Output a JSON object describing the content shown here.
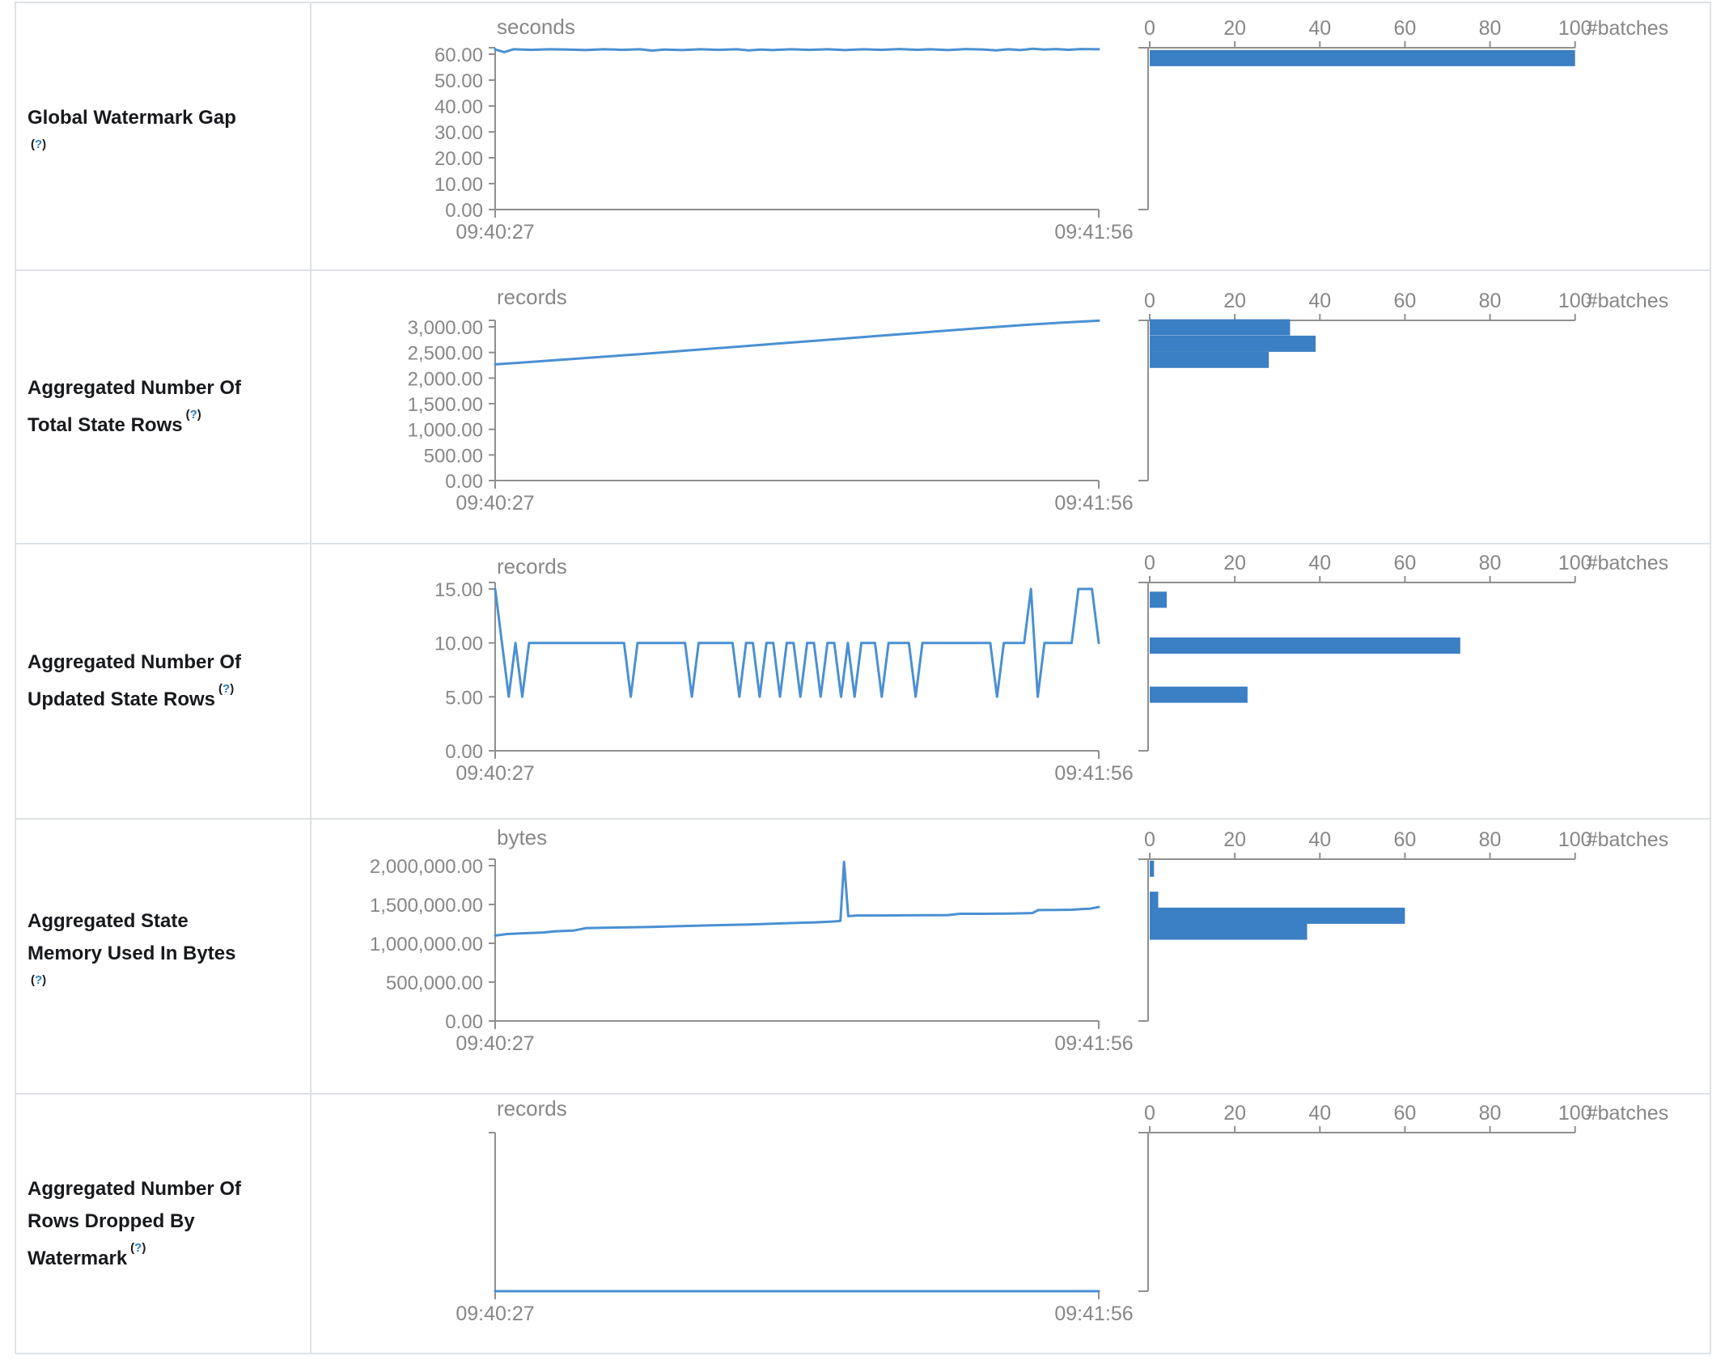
{
  "page": {
    "background": "#ffffff",
    "border_color": "#dee2e6"
  },
  "colors": {
    "line": "#4a90d2",
    "bar": "#3b7fc4",
    "axis": "#8f8f8f",
    "axis_text": "#878787",
    "label_text": "#17191c",
    "help_link": "#2b7cba"
  },
  "time_axis": {
    "start": "09:40:27",
    "end": "09:41:56"
  },
  "batches_axis": {
    "ticks": [
      "0",
      "20",
      "40",
      "60",
      "80",
      "100"
    ],
    "values": [
      0,
      20,
      40,
      60,
      80,
      100
    ],
    "label": "#batches",
    "xlim": [
      0,
      100
    ]
  },
  "chart_data": [
    {
      "metric": "Global Watermark Gap",
      "label_lines": [
        "Global Watermark Gap"
      ],
      "help": "(?)",
      "help_own_line": true,
      "line": {
        "type": "line",
        "ylabel": "seconds",
        "ylim": [
          0,
          60
        ],
        "x_range": [
          "09:40:27",
          "09:41:56"
        ],
        "yticks": [
          {
            "label": "60.00",
            "value": 60
          },
          {
            "label": "50.00",
            "value": 50
          },
          {
            "label": "40.00",
            "value": 40
          },
          {
            "label": "30.00",
            "value": 30
          },
          {
            "label": "20.00",
            "value": 20
          },
          {
            "label": "10.00",
            "value": 10
          },
          {
            "label": "0.00",
            "value": 0
          }
        ],
        "points": [
          [
            0,
            61.8
          ],
          [
            0.015,
            60.8
          ],
          [
            0.03,
            61.9
          ],
          [
            0.06,
            61.7
          ],
          [
            0.09,
            61.9
          ],
          [
            0.12,
            61.8
          ],
          [
            0.15,
            61.6
          ],
          [
            0.18,
            61.9
          ],
          [
            0.21,
            61.7
          ],
          [
            0.24,
            61.9
          ],
          [
            0.26,
            61.4
          ],
          [
            0.28,
            61.8
          ],
          [
            0.31,
            61.6
          ],
          [
            0.34,
            61.9
          ],
          [
            0.37,
            61.7
          ],
          [
            0.4,
            61.9
          ],
          [
            0.42,
            61.5
          ],
          [
            0.44,
            61.8
          ],
          [
            0.46,
            61.6
          ],
          [
            0.49,
            61.9
          ],
          [
            0.52,
            61.7
          ],
          [
            0.55,
            61.9
          ],
          [
            0.58,
            61.6
          ],
          [
            0.61,
            61.9
          ],
          [
            0.64,
            61.7
          ],
          [
            0.67,
            62.0
          ],
          [
            0.7,
            61.7
          ],
          [
            0.72,
            61.9
          ],
          [
            0.75,
            61.6
          ],
          [
            0.78,
            62.0
          ],
          [
            0.81,
            61.8
          ],
          [
            0.83,
            61.5
          ],
          [
            0.85,
            61.9
          ],
          [
            0.87,
            61.6
          ],
          [
            0.89,
            62.1
          ],
          [
            0.91,
            61.8
          ],
          [
            0.93,
            62.0
          ],
          [
            0.95,
            61.7
          ],
          [
            0.97,
            62.0
          ],
          [
            1,
            61.9
          ]
        ]
      },
      "histogram": {
        "type": "bar",
        "xlabel": "#batches",
        "xlim": [
          0,
          100
        ],
        "bins": [
          {
            "value": 58.5,
            "count": 100
          }
        ]
      }
    },
    {
      "metric": "Aggregated Number Of Total State Rows",
      "label_lines": [
        "Aggregated Number Of",
        "Total State Rows"
      ],
      "help": "(?)",
      "help_own_line": false,
      "line": {
        "type": "line",
        "ylabel": "records",
        "ylim": [
          0,
          3000
        ],
        "x_range": [
          "09:40:27",
          "09:41:56"
        ],
        "yticks": [
          {
            "label": "3,000.00",
            "value": 3000
          },
          {
            "label": "2,500.00",
            "value": 2500
          },
          {
            "label": "2,000.00",
            "value": 2000
          },
          {
            "label": "1,500.00",
            "value": 1500
          },
          {
            "label": "1,000.00",
            "value": 1000
          },
          {
            "label": "500.00",
            "value": 500
          },
          {
            "label": "0.00",
            "value": 0
          }
        ],
        "points": [
          [
            0,
            2268
          ],
          [
            0.08,
            2332
          ],
          [
            0.16,
            2400
          ],
          [
            0.24,
            2468
          ],
          [
            0.32,
            2540
          ],
          [
            0.4,
            2612
          ],
          [
            0.48,
            2684
          ],
          [
            0.56,
            2756
          ],
          [
            0.64,
            2828
          ],
          [
            0.72,
            2900
          ],
          [
            0.8,
            2972
          ],
          [
            0.88,
            3040
          ],
          [
            0.94,
            3084
          ],
          [
            1,
            3120
          ]
        ]
      },
      "histogram": {
        "type": "bar",
        "xlabel": "#batches",
        "xlim": [
          0,
          100
        ],
        "bins": [
          {
            "value": 2990,
            "count": 33
          },
          {
            "value": 2670,
            "count": 39
          },
          {
            "value": 2355,
            "count": 28
          }
        ]
      }
    },
    {
      "metric": "Aggregated Number Of Updated State Rows",
      "label_lines": [
        "Aggregated Number Of",
        "Updated State Rows"
      ],
      "help": "(?)",
      "help_own_line": false,
      "line": {
        "type": "line",
        "ylabel": "records",
        "ylim": [
          0,
          15
        ],
        "x_range": [
          "09:40:27",
          "09:41:56"
        ],
        "yticks": [
          {
            "label": "15.00",
            "value": 15
          },
          {
            "label": "10.00",
            "value": 10
          },
          {
            "label": "5.00",
            "value": 5
          },
          {
            "label": "0.00",
            "value": 0
          }
        ],
        "values": [
          15,
          10,
          5,
          10,
          5,
          10,
          10,
          10,
          10,
          10,
          10,
          10,
          10,
          10,
          10,
          10,
          10,
          10,
          10,
          10,
          5,
          10,
          10,
          10,
          10,
          10,
          10,
          10,
          10,
          5,
          10,
          10,
          10,
          10,
          10,
          10,
          5,
          10,
          10,
          5,
          10,
          10,
          5,
          10,
          10,
          5,
          10,
          10,
          5,
          10,
          10,
          5,
          10,
          5,
          10,
          10,
          10,
          5,
          10,
          10,
          10,
          10,
          5,
          10,
          10,
          10,
          10,
          10,
          10,
          10,
          10,
          10,
          10,
          10,
          5,
          10,
          10,
          10,
          10,
          15,
          5,
          10,
          10,
          10,
          10,
          10,
          15,
          15,
          15,
          10
        ]
      },
      "histogram": {
        "type": "bar",
        "xlabel": "#batches",
        "xlim": [
          0,
          100
        ],
        "bins": [
          {
            "value": 14.0,
            "count": 4
          },
          {
            "value": 9.75,
            "count": 73
          },
          {
            "value": 5.2,
            "count": 23
          }
        ]
      }
    },
    {
      "metric": "Aggregated State Memory Used In Bytes",
      "label_lines": [
        "Aggregated State",
        "Memory Used In Bytes"
      ],
      "help": "(?)",
      "help_own_line": true,
      "line": {
        "type": "line",
        "ylabel": "bytes",
        "ylim": [
          0,
          2000000
        ],
        "x_range": [
          "09:40:27",
          "09:41:56"
        ],
        "yticks": [
          {
            "label": "2,000,000.00",
            "value": 2000000
          },
          {
            "label": "1,500,000.00",
            "value": 1500000
          },
          {
            "label": "1,000,000.00",
            "value": 1000000
          },
          {
            "label": "500,000.00",
            "value": 500000
          },
          {
            "label": "0.00",
            "value": 0
          }
        ],
        "points": [
          [
            0,
            1100000
          ],
          [
            0.02,
            1120000
          ],
          [
            0.05,
            1130000
          ],
          [
            0.08,
            1140000
          ],
          [
            0.1,
            1155000
          ],
          [
            0.13,
            1165000
          ],
          [
            0.15,
            1195000
          ],
          [
            0.18,
            1200000
          ],
          [
            0.22,
            1205000
          ],
          [
            0.26,
            1210000
          ],
          [
            0.3,
            1220000
          ],
          [
            0.34,
            1228000
          ],
          [
            0.38,
            1235000
          ],
          [
            0.42,
            1243000
          ],
          [
            0.46,
            1252000
          ],
          [
            0.5,
            1262000
          ],
          [
            0.53,
            1270000
          ],
          [
            0.555,
            1278000
          ],
          [
            0.565,
            1283000
          ],
          [
            0.572,
            1290000
          ],
          [
            0.578,
            2050000
          ],
          [
            0.585,
            1350000
          ],
          [
            0.6,
            1358000
          ],
          [
            0.64,
            1358000
          ],
          [
            0.68,
            1360000
          ],
          [
            0.72,
            1362000
          ],
          [
            0.75,
            1364000
          ],
          [
            0.77,
            1380000
          ],
          [
            0.81,
            1380000
          ],
          [
            0.85,
            1383000
          ],
          [
            0.875,
            1386000
          ],
          [
            0.89,
            1390000
          ],
          [
            0.9,
            1428000
          ],
          [
            0.93,
            1430000
          ],
          [
            0.955,
            1432000
          ],
          [
            0.97,
            1440000
          ],
          [
            0.985,
            1445000
          ],
          [
            1,
            1468000
          ]
        ]
      },
      "histogram": {
        "type": "bar",
        "xlabel": "#batches",
        "xlim": [
          0,
          100
        ],
        "bins": [
          {
            "value": 1960000,
            "count": 1
          },
          {
            "value": 1560000,
            "count": 2
          },
          {
            "value": 1355000,
            "count": 60
          },
          {
            "value": 1150000,
            "count": 37
          }
        ]
      }
    },
    {
      "metric": "Aggregated Number Of Rows Dropped By Watermark",
      "label_lines": [
        "Aggregated Number Of",
        "Rows Dropped By",
        "Watermark"
      ],
      "help": "(?)",
      "help_own_line": false,
      "line": {
        "type": "line",
        "ylabel": "records",
        "ylim": [
          0,
          1
        ],
        "x_range": [
          "09:40:27",
          "09:41:56"
        ],
        "yticks": [],
        "points": [
          [
            0,
            0
          ],
          [
            1,
            0
          ]
        ]
      },
      "histogram": {
        "type": "bar",
        "xlabel": "#batches",
        "xlim": [
          0,
          100
        ],
        "bins": []
      }
    }
  ]
}
